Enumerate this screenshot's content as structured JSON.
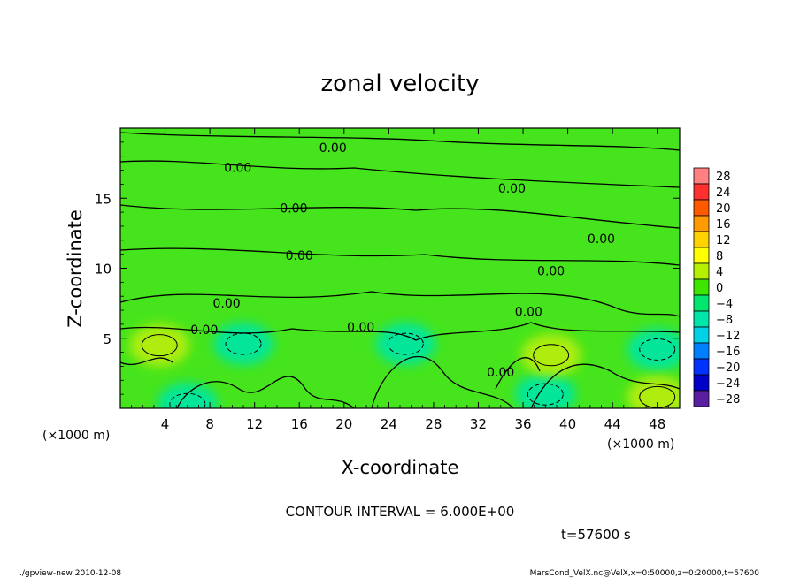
{
  "chart_data": {
    "type": "heatmap",
    "title": "zonal velocity",
    "xlabel": "X-coordinate",
    "ylabel": "Z-coordinate",
    "x_units_left": "(×1000 m)",
    "x_units_right": "(×1000 m)",
    "xlim": [
      0,
      50
    ],
    "ylim": [
      0,
      20
    ],
    "x_ticks": [
      4,
      8,
      12,
      16,
      20,
      24,
      28,
      32,
      36,
      40,
      44,
      48
    ],
    "x_tick_labels": [
      "4",
      "8",
      "12",
      "16",
      "20",
      "24",
      "28",
      "32",
      "36",
      "40",
      "44",
      "48"
    ],
    "y_ticks": [
      5,
      10,
      15
    ],
    "y_tick_labels": [
      "5",
      "10",
      "15"
    ],
    "colorbar": {
      "levels": [
        28,
        24,
        20,
        16,
        12,
        8,
        4,
        0,
        -4,
        -8,
        -12,
        -16,
        -20,
        -24,
        -28
      ],
      "labels": [
        "28",
        "24",
        "20",
        "16",
        "12",
        "8",
        "4",
        "0",
        "−4",
        "−8",
        "−12",
        "−16",
        "−20",
        "−24",
        "−28"
      ],
      "colors": [
        "#ff8080",
        "#ff3030",
        "#ff5a00",
        "#ff9a00",
        "#ffd200",
        "#ffff00",
        "#b4f000",
        "#3ce600",
        "#00e66e",
        "#00e6aa",
        "#00d2e6",
        "#0080ff",
        "#0032ff",
        "#0000c8",
        "#5a1ea0"
      ]
    },
    "contour_labels": [
      {
        "text": "0.00",
        "x": 19,
        "z": 18.6
      },
      {
        "text": "0.00",
        "x": 10.5,
        "z": 17.2
      },
      {
        "text": "0.00",
        "x": 35,
        "z": 15.7
      },
      {
        "text": "0.00",
        "x": 15.5,
        "z": 14.3
      },
      {
        "text": "0.00",
        "x": 43,
        "z": 12.1
      },
      {
        "text": "0.00",
        "x": 16,
        "z": 10.9
      },
      {
        "text": "0.00",
        "x": 38.5,
        "z": 9.8
      },
      {
        "text": "0.00",
        "x": 9.5,
        "z": 7.5
      },
      {
        "text": "0.00",
        "x": 36.5,
        "z": 6.9
      },
      {
        "text": "0.00",
        "x": 21.5,
        "z": 5.8
      },
      {
        "text": "0.00",
        "x": 7.5,
        "z": 5.6
      },
      {
        "text": "0.00",
        "x": 34,
        "z": 2.6
      }
    ],
    "anomalies": [
      {
        "x": 11,
        "z": 4.6,
        "sign": "negative"
      },
      {
        "x": 25.5,
        "z": 4.6,
        "sign": "negative"
      },
      {
        "x": 48,
        "z": 4.2,
        "sign": "negative"
      },
      {
        "x": 6,
        "z": 0.3,
        "sign": "negative"
      },
      {
        "x": 38,
        "z": 1.0,
        "sign": "negative"
      },
      {
        "x": 38.5,
        "z": 3.8,
        "sign": "positive"
      },
      {
        "x": 3.5,
        "z": 4.5,
        "sign": "positive"
      },
      {
        "x": 48,
        "z": 0.8,
        "sign": "positive"
      }
    ],
    "contour_interval_label": "CONTOUR INTERVAL = 6.000E+00"
  },
  "time_label": "t=57600 s",
  "footer_left": "./gpview-new  2010-12-08",
  "footer_right": "MarsCond_VelX.nc@VelX,x=0:50000,z=0:20000,t=57600"
}
